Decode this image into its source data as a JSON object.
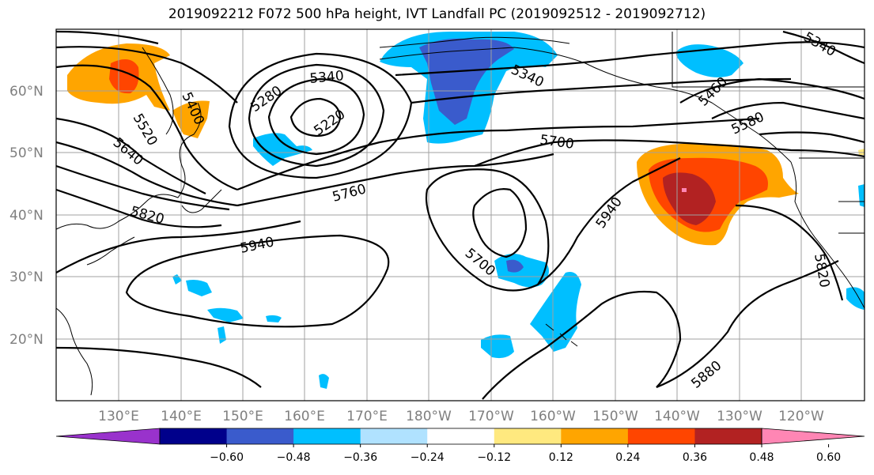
{
  "title": "2019092212 F072 500 hPa height, IVT Landfall PC (2019092512 - 2019092712)",
  "lat_labels": [
    "60°N",
    "50°N",
    "40°N",
    "30°N",
    "20°N"
  ],
  "lon_labels": [
    "130°E",
    "140°E",
    "150°E",
    "160°E",
    "170°E",
    "180°W",
    "170°W",
    "160°W",
    "150°W",
    "140°W",
    "130°W",
    "120°W"
  ],
  "contour_labels": [
    "5400",
    "5520",
    "5640",
    "5820",
    "5940",
    "5760",
    "5700",
    "5280",
    "5340",
    "5220",
    "5340",
    "5700",
    "5940",
    "5880",
    "5820",
    "5340",
    "5460",
    "5580"
  ],
  "colorbar": {
    "ticks": [
      "−0.60",
      "−0.48",
      "−0.36",
      "−0.24",
      "−0.12",
      "0.12",
      "0.24",
      "0.36",
      "0.48",
      "0.60"
    ],
    "colors": [
      "#9932cc",
      "#00008b",
      "#3a5bcc",
      "#00bfff",
      "#b0e2ff",
      "#ffffff",
      "#ffe97f",
      "#ffa500",
      "#ff4500",
      "#b22222",
      "#ff86b4"
    ]
  },
  "colors": {
    "neg_light": "#00bfff",
    "neg_mid": "#3a5bcc",
    "pos_light": "#ffa500",
    "pos_mid": "#ff4500",
    "pos_dark": "#b22222",
    "grid": "#a0a0a0"
  }
}
